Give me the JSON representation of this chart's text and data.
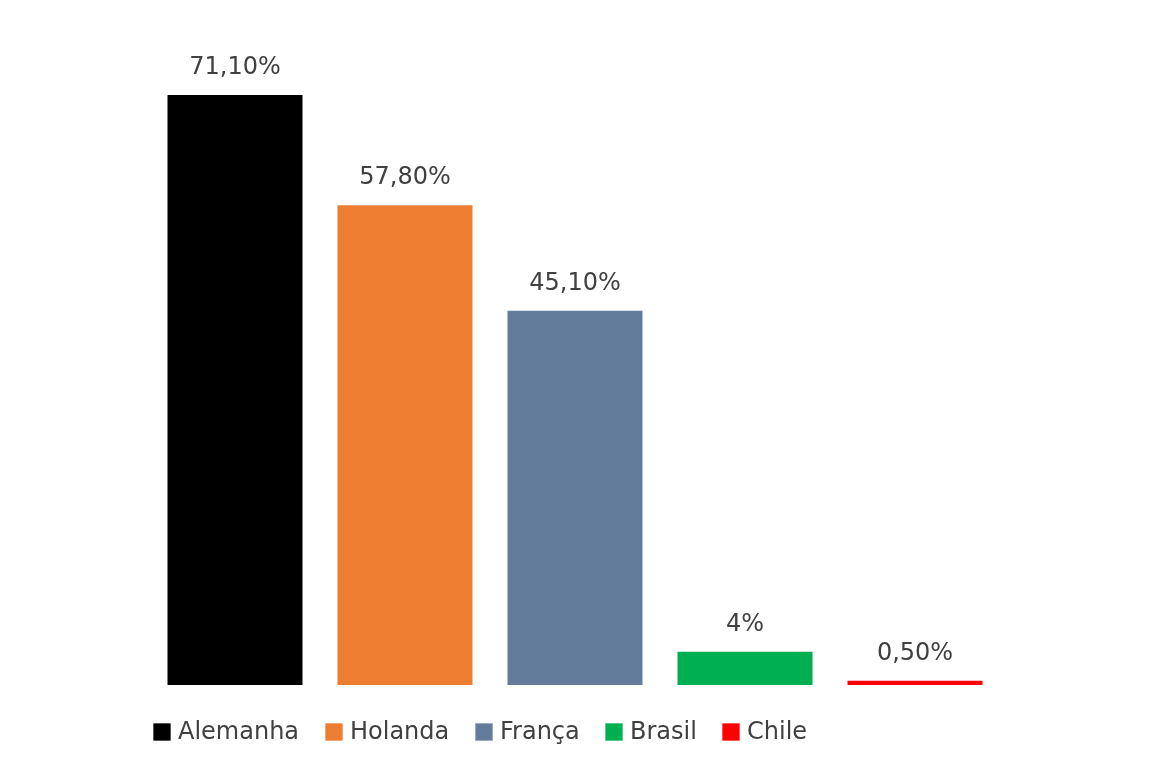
{
  "chart_data": {
    "type": "bar",
    "categories": [
      null
    ],
    "legend": "bottom",
    "tick_labels": false,
    "grid": false,
    "series": [
      {
        "name": "Alemanha",
        "color": "#000000",
        "values": [
          71.1
        ],
        "value_labels": [
          "71,10%"
        ]
      },
      {
        "name": "Holanda",
        "color": "#ed7d31",
        "values": [
          57.8
        ],
        "value_labels": [
          "57,80%"
        ]
      },
      {
        "name": "França",
        "color": "#647c9c",
        "values": [
          45.1
        ],
        "value_labels": [
          "45,10%"
        ]
      },
      {
        "name": "Brasil",
        "color": "#00b050",
        "values": [
          4
        ],
        "value_labels": [
          "4%"
        ]
      },
      {
        "name": "Chile",
        "color": "#ff0000",
        "values": [
          0.5
        ],
        "value_labels": [
          "0,50%"
        ]
      }
    ]
  }
}
